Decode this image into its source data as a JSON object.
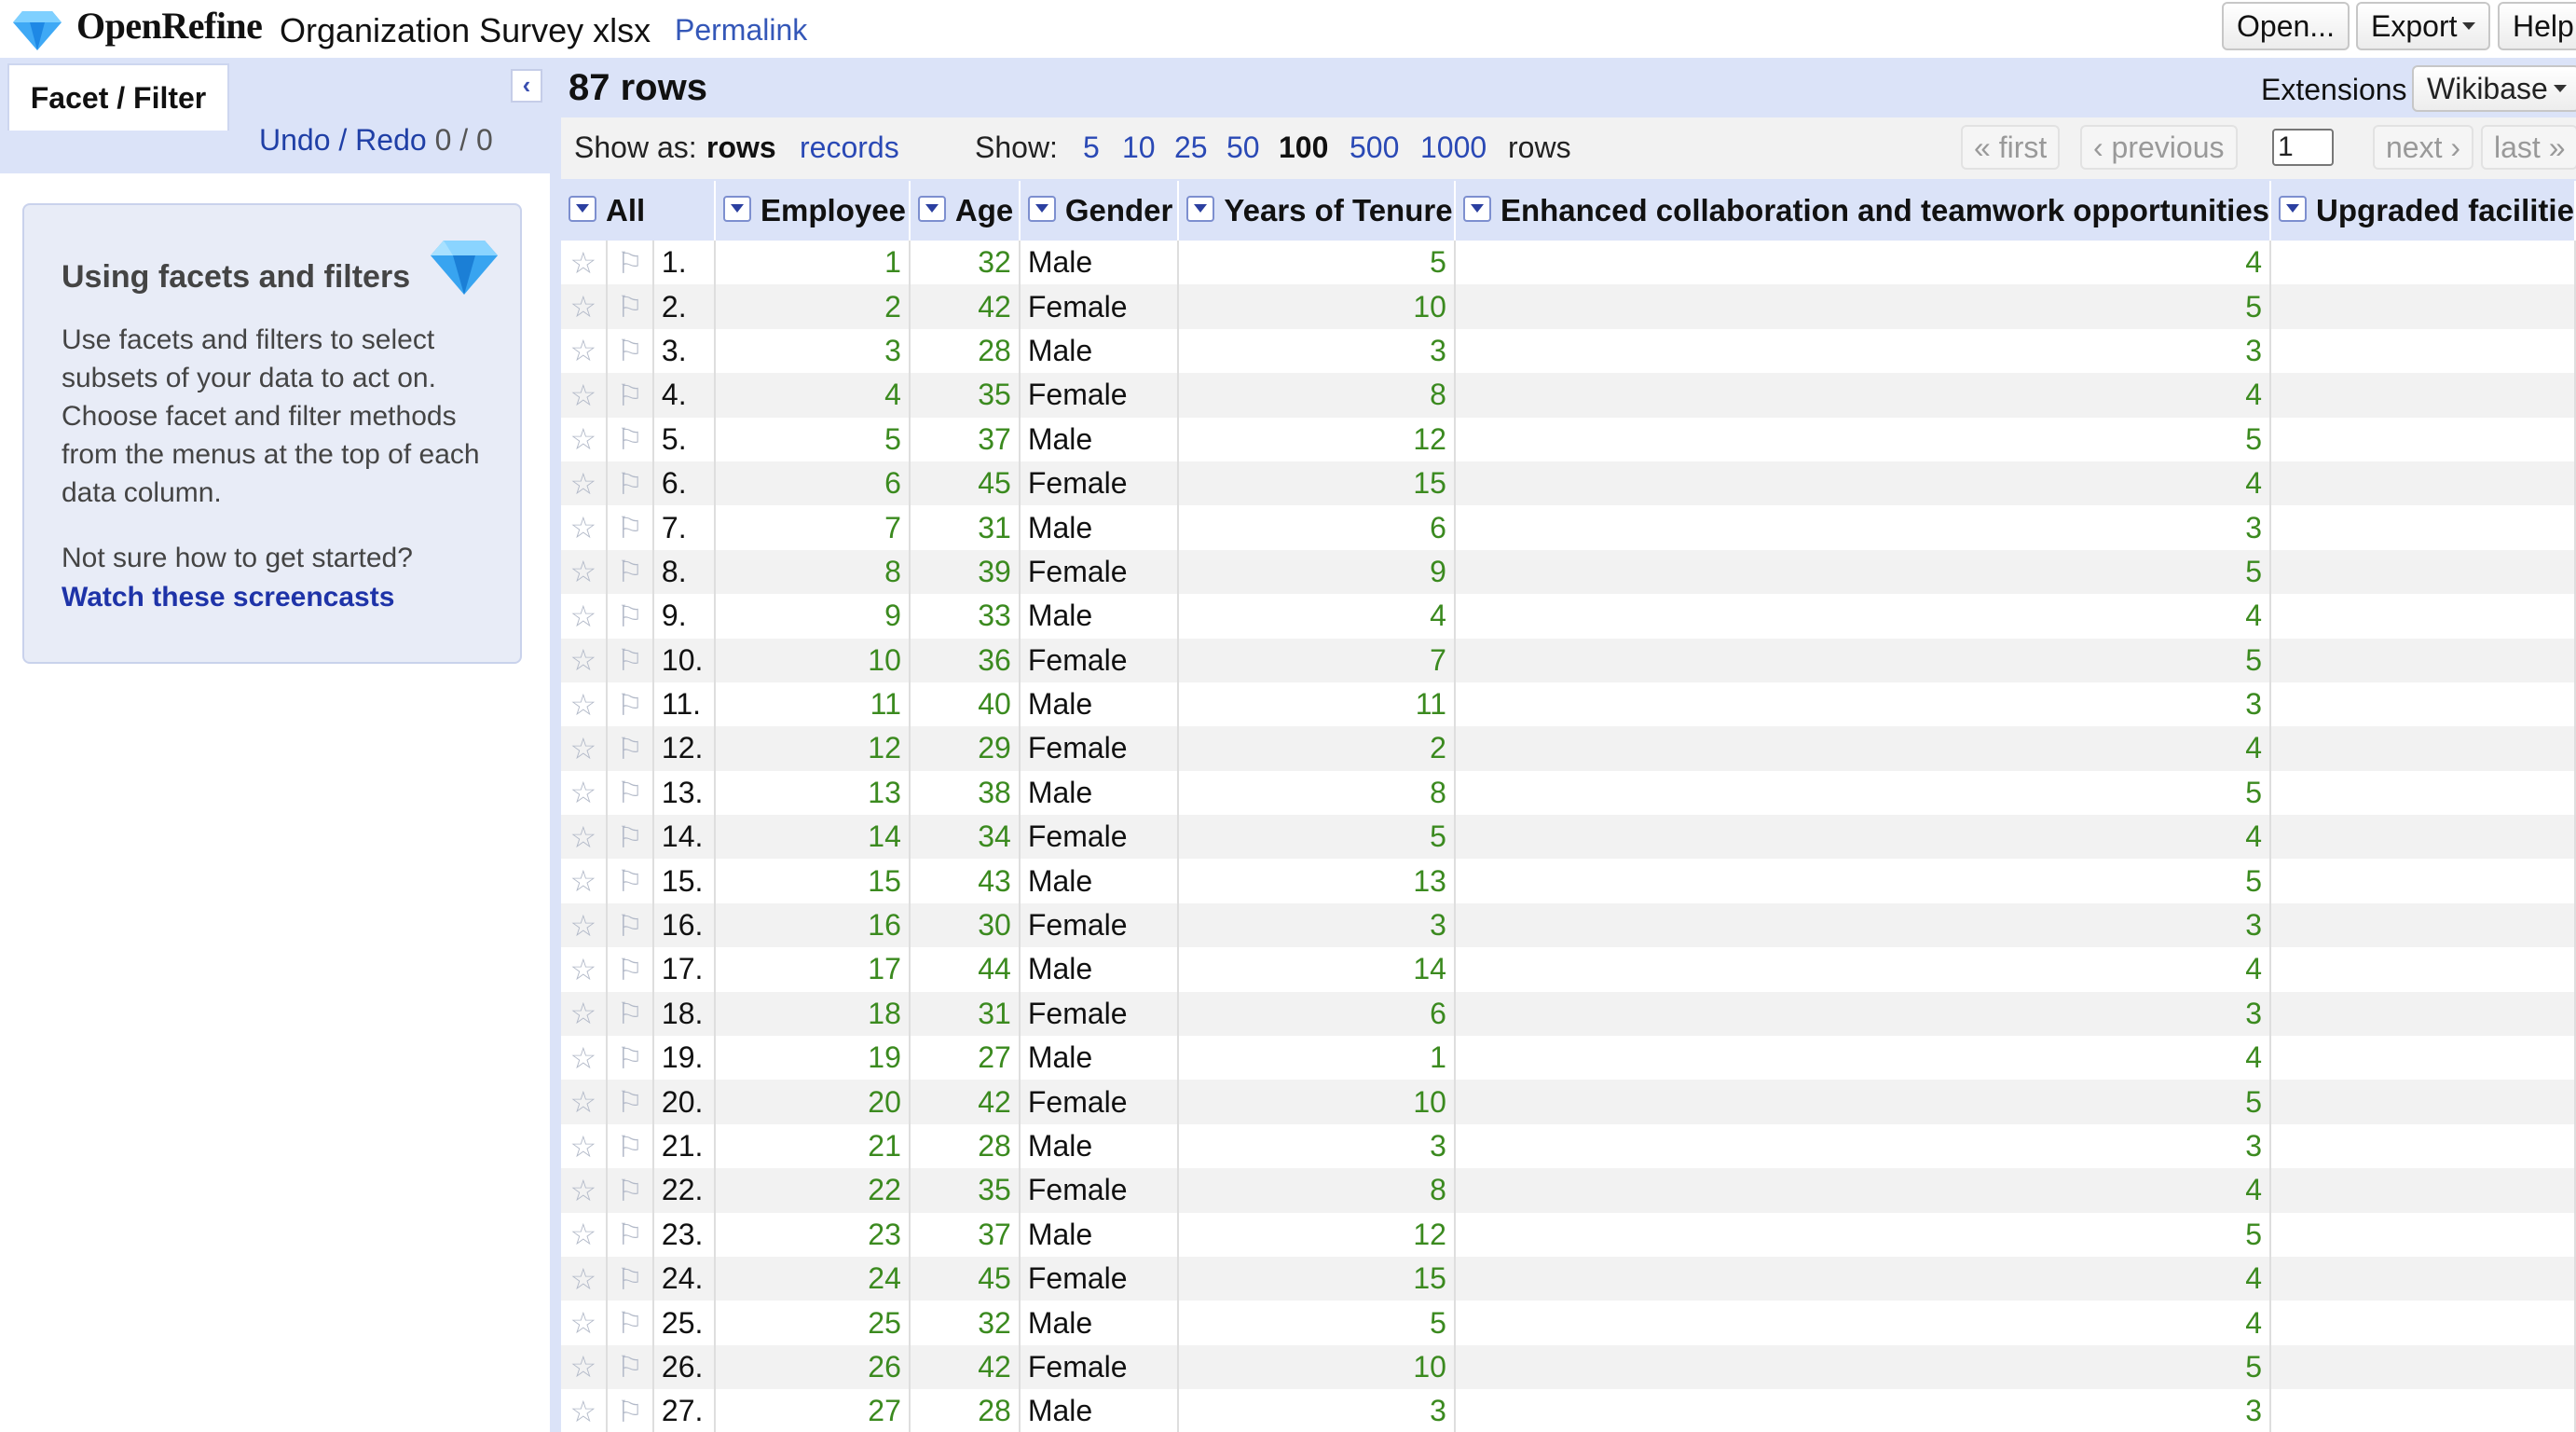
{
  "header": {
    "app_name": "OpenRefine",
    "project_name": "Organization Survey xlsx",
    "permalink": "Permalink",
    "buttons": {
      "open": "Open...",
      "export": "Export",
      "help": "Help"
    }
  },
  "left_panel": {
    "tab_label": "Facet / Filter",
    "undo": "Undo",
    "slash": " / ",
    "redo": "Redo",
    "counter": " 0 / 0",
    "help": {
      "title": "Using facets and filters",
      "body": "Use facets and filters to select subsets of your data to act on. Choose facet and filter methods from the menus at the top of each data column.",
      "question": "Not sure how to get started?",
      "link": "Watch these screencasts"
    }
  },
  "grid": {
    "row_count": "87 rows",
    "extensions_label": "Extensions",
    "wikibase_label": "Wikibase",
    "show_as_label": "Show as:",
    "show_as_rows": "rows",
    "show_as_records": "records",
    "show_label": "Show:",
    "page_sizes": [
      "5",
      "10",
      "25",
      "50",
      "100",
      "500",
      "1000"
    ],
    "page_size_selected": "100",
    "rows_word": "rows",
    "pager": {
      "first": "« first",
      "previous": "‹ previous",
      "page": "1",
      "next": "next ›",
      "last": "last »"
    },
    "columns": [
      "All",
      "Employee",
      "Age",
      "Gender",
      "Years of Tenure",
      "Enhanced collaboration and teamwork opportunities",
      "Upgraded facilitie"
    ],
    "rows": [
      {
        "idx": "1.",
        "employee": "1",
        "age": "32",
        "gender": "Male",
        "tenure": "5",
        "collab": "4"
      },
      {
        "idx": "2.",
        "employee": "2",
        "age": "42",
        "gender": "Female",
        "tenure": "10",
        "collab": "5"
      },
      {
        "idx": "3.",
        "employee": "3",
        "age": "28",
        "gender": "Male",
        "tenure": "3",
        "collab": "3"
      },
      {
        "idx": "4.",
        "employee": "4",
        "age": "35",
        "gender": "Female",
        "tenure": "8",
        "collab": "4"
      },
      {
        "idx": "5.",
        "employee": "5",
        "age": "37",
        "gender": "Male",
        "tenure": "12",
        "collab": "5"
      },
      {
        "idx": "6.",
        "employee": "6",
        "age": "45",
        "gender": "Female",
        "tenure": "15",
        "collab": "4"
      },
      {
        "idx": "7.",
        "employee": "7",
        "age": "31",
        "gender": "Male",
        "tenure": "6",
        "collab": "3"
      },
      {
        "idx": "8.",
        "employee": "8",
        "age": "39",
        "gender": "Female",
        "tenure": "9",
        "collab": "5"
      },
      {
        "idx": "9.",
        "employee": "9",
        "age": "33",
        "gender": "Male",
        "tenure": "4",
        "collab": "4"
      },
      {
        "idx": "10.",
        "employee": "10",
        "age": "36",
        "gender": "Female",
        "tenure": "7",
        "collab": "5"
      },
      {
        "idx": "11.",
        "employee": "11",
        "age": "40",
        "gender": "Male",
        "tenure": "11",
        "collab": "3"
      },
      {
        "idx": "12.",
        "employee": "12",
        "age": "29",
        "gender": "Female",
        "tenure": "2",
        "collab": "4"
      },
      {
        "idx": "13.",
        "employee": "13",
        "age": "38",
        "gender": "Male",
        "tenure": "8",
        "collab": "5"
      },
      {
        "idx": "14.",
        "employee": "14",
        "age": "34",
        "gender": "Female",
        "tenure": "5",
        "collab": "4"
      },
      {
        "idx": "15.",
        "employee": "15",
        "age": "43",
        "gender": "Male",
        "tenure": "13",
        "collab": "5"
      },
      {
        "idx": "16.",
        "employee": "16",
        "age": "30",
        "gender": "Female",
        "tenure": "3",
        "collab": "3"
      },
      {
        "idx": "17.",
        "employee": "17",
        "age": "44",
        "gender": "Male",
        "tenure": "14",
        "collab": "4"
      },
      {
        "idx": "18.",
        "employee": "18",
        "age": "31",
        "gender": "Female",
        "tenure": "6",
        "collab": "3"
      },
      {
        "idx": "19.",
        "employee": "19",
        "age": "27",
        "gender": "Male",
        "tenure": "1",
        "collab": "4"
      },
      {
        "idx": "20.",
        "employee": "20",
        "age": "42",
        "gender": "Female",
        "tenure": "10",
        "collab": "5"
      },
      {
        "idx": "21.",
        "employee": "21",
        "age": "28",
        "gender": "Male",
        "tenure": "3",
        "collab": "3"
      },
      {
        "idx": "22.",
        "employee": "22",
        "age": "35",
        "gender": "Female",
        "tenure": "8",
        "collab": "4"
      },
      {
        "idx": "23.",
        "employee": "23",
        "age": "37",
        "gender": "Male",
        "tenure": "12",
        "collab": "5"
      },
      {
        "idx": "24.",
        "employee": "24",
        "age": "45",
        "gender": "Female",
        "tenure": "15",
        "collab": "4"
      },
      {
        "idx": "25.",
        "employee": "25",
        "age": "32",
        "gender": "Male",
        "tenure": "5",
        "collab": "4"
      },
      {
        "idx": "26.",
        "employee": "26",
        "age": "42",
        "gender": "Female",
        "tenure": "10",
        "collab": "5"
      },
      {
        "idx": "27.",
        "employee": "27",
        "age": "28",
        "gender": "Male",
        "tenure": "3",
        "collab": "3"
      }
    ]
  }
}
